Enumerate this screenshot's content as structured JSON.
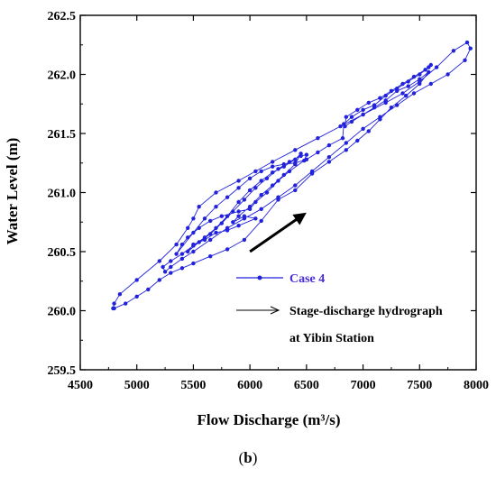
{
  "panel_label_prefix": "(",
  "panel_label_letter": "b",
  "panel_label_suffix": ")",
  "colors": {
    "series": "#2222dd",
    "legend_case": "#4a2cd8",
    "axis": "#000000",
    "arrow": "#000000"
  },
  "chart_data": {
    "type": "line",
    "title": "",
    "xlabel": "Flow Discharge (m³/s)",
    "ylabel": "Water Level (m)",
    "xlim": [
      4500,
      8000
    ],
    "ylim": [
      259.5,
      262.5
    ],
    "xticks": [
      "4500",
      "5000",
      "5500",
      "6000",
      "6500",
      "7000",
      "7500",
      "8000"
    ],
    "yticks": [
      "259.5",
      "260.0",
      "260.5",
      "261.0",
      "261.5",
      "262.0",
      "262.5"
    ],
    "grid": false,
    "legend_position": "bottom-right",
    "legend": [
      {
        "label": "Case 4",
        "marker": "line-with-dots"
      },
      {
        "label": "Stage-discharge hydrograph",
        "label_line2": "at Yibin Station",
        "marker": "arrow"
      }
    ],
    "series": [
      {
        "name": "Case 4",
        "points": [
          [
            4790,
            260.02
          ],
          [
            4800,
            260.06
          ],
          [
            4850,
            260.14
          ],
          [
            5000,
            260.26
          ],
          [
            5200,
            260.42
          ],
          [
            5350,
            260.56
          ],
          [
            5450,
            260.7
          ],
          [
            5500,
            260.78
          ],
          [
            5550,
            260.88
          ],
          [
            5700,
            261.0
          ],
          [
            5900,
            261.1
          ],
          [
            6050,
            261.18
          ],
          [
            6200,
            261.26
          ],
          [
            6400,
            261.36
          ],
          [
            6600,
            261.46
          ],
          [
            6800,
            261.56
          ],
          [
            7000,
            261.66
          ],
          [
            7200,
            261.76
          ],
          [
            7350,
            261.84
          ],
          [
            7500,
            261.94
          ],
          [
            7650,
            262.06
          ],
          [
            7800,
            262.2
          ],
          [
            7920,
            262.27
          ],
          [
            7950,
            262.22
          ],
          [
            7900,
            262.12
          ],
          [
            7750,
            262.0
          ],
          [
            7600,
            261.92
          ],
          [
            7450,
            261.84
          ],
          [
            7300,
            261.74
          ],
          [
            7150,
            261.64
          ],
          [
            7000,
            261.54
          ],
          [
            6850,
            261.42
          ],
          [
            6700,
            261.3
          ],
          [
            6550,
            261.18
          ],
          [
            6400,
            261.06
          ],
          [
            6250,
            260.96
          ],
          [
            6100,
            260.86
          ],
          [
            5950,
            260.78
          ],
          [
            5800,
            260.7
          ],
          [
            5650,
            260.6
          ],
          [
            5500,
            260.5
          ],
          [
            5400,
            260.44
          ],
          [
            5300,
            260.37
          ],
          [
            5250,
            260.33
          ],
          [
            5230,
            260.37
          ],
          [
            5300,
            260.42
          ],
          [
            5400,
            260.48
          ],
          [
            5500,
            260.55
          ],
          [
            5600,
            260.62
          ],
          [
            5700,
            260.7
          ],
          [
            5800,
            260.8
          ],
          [
            5900,
            260.92
          ],
          [
            6000,
            261.02
          ],
          [
            6100,
            261.1
          ],
          [
            6200,
            261.17
          ],
          [
            6300,
            261.22
          ],
          [
            6400,
            261.28
          ],
          [
            6450,
            261.33
          ],
          [
            6400,
            261.24
          ],
          [
            6300,
            261.15
          ],
          [
            6200,
            261.06
          ],
          [
            6100,
            260.98
          ],
          [
            6000,
            260.88
          ],
          [
            5900,
            260.8
          ],
          [
            5850,
            260.75
          ],
          [
            5950,
            260.8
          ],
          [
            6050,
            260.78
          ],
          [
            5900,
            260.72
          ],
          [
            5800,
            260.68
          ],
          [
            5700,
            260.66
          ],
          [
            5600,
            260.6
          ],
          [
            5500,
            260.56
          ],
          [
            5450,
            260.5
          ],
          [
            5550,
            260.58
          ],
          [
            5650,
            260.65
          ],
          [
            5750,
            260.74
          ],
          [
            5850,
            260.84
          ],
          [
            5950,
            260.94
          ],
          [
            6050,
            261.04
          ],
          [
            6150,
            261.12
          ],
          [
            6250,
            261.2
          ],
          [
            6350,
            261.26
          ],
          [
            6450,
            261.31
          ],
          [
            6500,
            261.32
          ],
          [
            6480,
            261.27
          ],
          [
            6350,
            261.18
          ],
          [
            6250,
            261.1
          ],
          [
            6150,
            261.0
          ],
          [
            6050,
            260.92
          ],
          [
            6000,
            260.86
          ],
          [
            5900,
            260.84
          ],
          [
            5750,
            260.8
          ],
          [
            5650,
            260.76
          ],
          [
            5550,
            260.7
          ],
          [
            5450,
            260.62
          ],
          [
            5400,
            260.56
          ],
          [
            5350,
            260.48
          ],
          [
            5500,
            260.66
          ],
          [
            5600,
            260.78
          ],
          [
            5700,
            260.88
          ],
          [
            5800,
            260.96
          ],
          [
            5900,
            261.04
          ],
          [
            6000,
            261.12
          ],
          [
            6100,
            261.18
          ],
          [
            6200,
            261.22
          ],
          [
            6300,
            261.24
          ],
          [
            6400,
            261.25
          ],
          [
            6500,
            261.28
          ],
          [
            6600,
            261.34
          ],
          [
            6700,
            261.4
          ],
          [
            6820,
            261.46
          ],
          [
            6830,
            261.58
          ],
          [
            6900,
            261.64
          ],
          [
            7000,
            261.7
          ],
          [
            7100,
            261.74
          ],
          [
            7200,
            261.82
          ],
          [
            7300,
            261.88
          ],
          [
            7400,
            261.94
          ],
          [
            7500,
            262.0
          ],
          [
            7580,
            262.06
          ],
          [
            7600,
            262.08
          ],
          [
            7550,
            262.04
          ],
          [
            7450,
            261.98
          ],
          [
            7350,
            261.92
          ],
          [
            7250,
            261.86
          ],
          [
            7150,
            261.8
          ],
          [
            7050,
            261.76
          ],
          [
            6950,
            261.7
          ],
          [
            6850,
            261.64
          ],
          [
            6840,
            261.56
          ],
          [
            6900,
            261.6
          ],
          [
            7000,
            261.66
          ],
          [
            7100,
            261.72
          ],
          [
            7200,
            261.78
          ],
          [
            7300,
            261.86
          ],
          [
            7400,
            261.9
          ],
          [
            7500,
            261.96
          ],
          [
            7580,
            262.02
          ],
          [
            7500,
            261.92
          ],
          [
            7380,
            261.82
          ],
          [
            7250,
            261.72
          ],
          [
            7150,
            261.62
          ],
          [
            7050,
            261.52
          ],
          [
            6950,
            261.44
          ],
          [
            6850,
            261.36
          ],
          [
            6700,
            261.26
          ],
          [
            6550,
            261.16
          ],
          [
            6400,
            261.02
          ],
          [
            6250,
            260.94
          ],
          [
            6100,
            260.76
          ],
          [
            5950,
            260.6
          ],
          [
            5800,
            260.52
          ],
          [
            5650,
            260.46
          ],
          [
            5500,
            260.4
          ],
          [
            5400,
            260.36
          ],
          [
            5300,
            260.32
          ],
          [
            5200,
            260.26
          ],
          [
            5100,
            260.18
          ],
          [
            5000,
            260.12
          ],
          [
            4900,
            260.06
          ],
          [
            4800,
            260.02
          ]
        ]
      }
    ],
    "annotation_arrow": {
      "from": [
        6000,
        260.5
      ],
      "to": [
        6500,
        260.83
      ]
    }
  }
}
